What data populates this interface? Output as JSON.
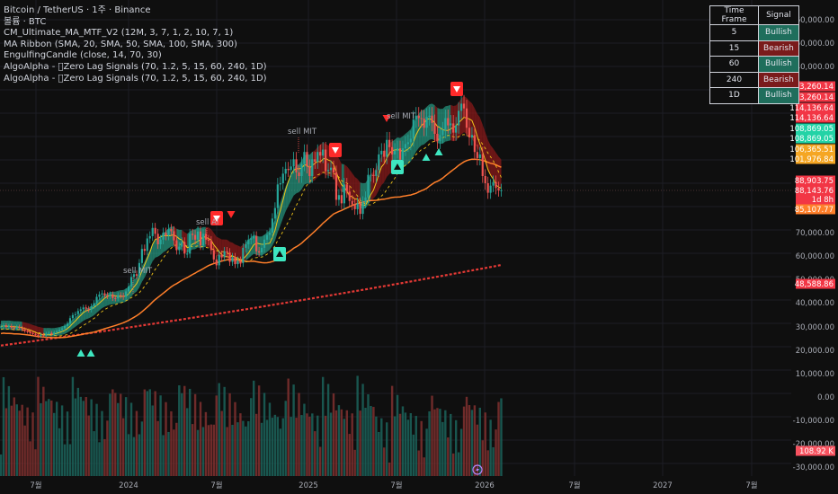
{
  "legend": {
    "title": "Bitcoin / TetherUS · 1주 · Binance",
    "volume": "볼륨 · BTC",
    "indicators": [
      "CM_Ultimate_MA_MTF_V2 (12M, 3, 7, 1, 2, 10, 7, 1)",
      "MA Ribbon (SMA, 20, SMA, 50, SMA, 100, SMA, 300)",
      "EngulfingCandle (close, 14, 70, 30)",
      "AlgoAlpha - \u0000Zero Lag Signals (70, 1.2, 5, 15, 60, 240, 1D)",
      "AlgoAlpha - \u0000Zero Lag Signals (70, 1.2, 5, 15, 60, 240, 1D)"
    ]
  },
  "signal_table": {
    "headers": [
      "Time Frame",
      "Signal"
    ],
    "rows": [
      {
        "tf": "5",
        "signal": "Bullish"
      },
      {
        "tf": "15",
        "signal": "Bearish"
      },
      {
        "tf": "60",
        "signal": "Bullish"
      },
      {
        "tf": "240",
        "signal": "Bearish"
      },
      {
        "tf": "1D",
        "signal": "Bullish"
      }
    ]
  },
  "colors": {
    "background": "#0f0f0f",
    "up": "#26a69a",
    "down": "#ef5350",
    "ribbon_bull": "#2ec4a6",
    "ribbon_bear": "#8b1a1a",
    "ma20": "#f0c419",
    "ma100": "#ff7f2a",
    "ma300": "#e53935",
    "signal_up": "#3ee6c0",
    "signal_down": "#ff2a2a"
  },
  "chart_data": {
    "type": "candlestick",
    "x_ticks": [
      "7월",
      "2024",
      "7월",
      "2025",
      "7월",
      "2026",
      "7월",
      "2027",
      "7월"
    ],
    "price_ticks": [
      "160,000.00",
      "150,000.00",
      "140,000.00",
      "70,000.00",
      "60,000.00",
      "50,000.00",
      "40,000.00",
      "30,000.00",
      "20,000.00",
      "10,000.00",
      "0.00",
      "-10,000.00",
      "-20,000.00",
      "-30,000.00"
    ],
    "price_labels": [
      {
        "value": "123,260.14",
        "color": "#f23645"
      },
      {
        "value": "123,260.14",
        "color": "#f23645"
      },
      {
        "value": "114,136.64",
        "color": "#f23645"
      },
      {
        "value": "114,136.64",
        "color": "#f23645"
      },
      {
        "value": "108,869.05",
        "color": "#22d3a6"
      },
      {
        "value": "108,869.05",
        "color": "#22d3a6"
      },
      {
        "value": "106,365.51",
        "color": "#f5a623"
      },
      {
        "value": "101,976.84",
        "color": "#f5a623"
      },
      {
        "value": "88,903.75",
        "color": "#f23645"
      },
      {
        "value": "88,143.76",
        "color": "#f23645"
      },
      {
        "value": "1d 8h",
        "color": "#f23645"
      },
      {
        "value": "85,107.77",
        "color": "#ff7f2a"
      },
      {
        "value": "48,588.86",
        "color": "#f23645"
      },
      {
        "value": "108.92 K",
        "color": "#f7525f"
      }
    ],
    "annotations": [
      "sell MIT",
      "sell MIT",
      "sell MIT",
      "sell Al"
    ],
    "ohlc_close": [
      30000,
      30500,
      29800,
      30200,
      29500,
      29200,
      29900,
      29400,
      28800,
      28200,
      27800,
      27200,
      26800,
      26400,
      26000,
      26500,
      26200,
      27000,
      27300,
      26700,
      27500,
      28000,
      28600,
      29200,
      30200,
      31200,
      33500,
      34800,
      35200,
      36500,
      37200,
      38000,
      37500,
      37000,
      38500,
      39800,
      42500,
      43500,
      44000,
      43200,
      42800,
      43500,
      42000,
      41800,
      43200,
      43000,
      42500,
      44800,
      47000,
      51000,
      52200,
      51600,
      57000,
      63000,
      62200,
      67500,
      68500,
      72000,
      69500,
      65000,
      67000,
      70000,
      68800,
      71500,
      70600,
      66700,
      62500,
      64000,
      66000,
      61000,
      61000,
      69500,
      69000,
      67000,
      70500,
      64500,
      69500,
      67000,
      66500,
      62500,
      58500,
      56000,
      60500,
      59500,
      62000,
      61500,
      57500,
      59500,
      56500,
      58000,
      57000,
      63500,
      65000,
      67000,
      67500,
      68500,
      62000,
      61500,
      63500,
      67000,
      69000,
      70000,
      76000,
      80500,
      90500,
      91000,
      95000,
      97000,
      96500,
      98000,
      101000,
      95500,
      94000,
      99000,
      104000,
      98000,
      94000,
      101000,
      100000,
      104000,
      102500,
      105000,
      96000,
      96500,
      97500,
      95500,
      84000,
      86000,
      82500,
      90500,
      87500,
      83500,
      82000,
      80000,
      82500,
      78000,
      83000,
      85000,
      94500,
      94500,
      94000,
      96500,
      103000,
      104500,
      102000,
      109000,
      106000,
      103000,
      104500,
      105500,
      100800,
      105500,
      107300,
      108000,
      109500,
      117500,
      119000,
      118000,
      117800,
      114000,
      118500,
      119000,
      116000,
      111500,
      108500,
      111000,
      113000,
      118000,
      115000,
      115800,
      112000,
      115000,
      121000,
      124000,
      122000,
      114000,
      110000,
      111000,
      104000,
      101500,
      103000,
      94000,
      91000,
      87000,
      90000,
      91500,
      89000,
      88000,
      88100
    ],
    "volume": [
      {
        "v": 34,
        "up": false
      },
      {
        "v": 24,
        "up": true
      }
    ],
    "ma20_last": 101976.84,
    "ma50_last": 106365.51,
    "ma100_last": 85107.77,
    "ma300_last": 48588.86
  }
}
